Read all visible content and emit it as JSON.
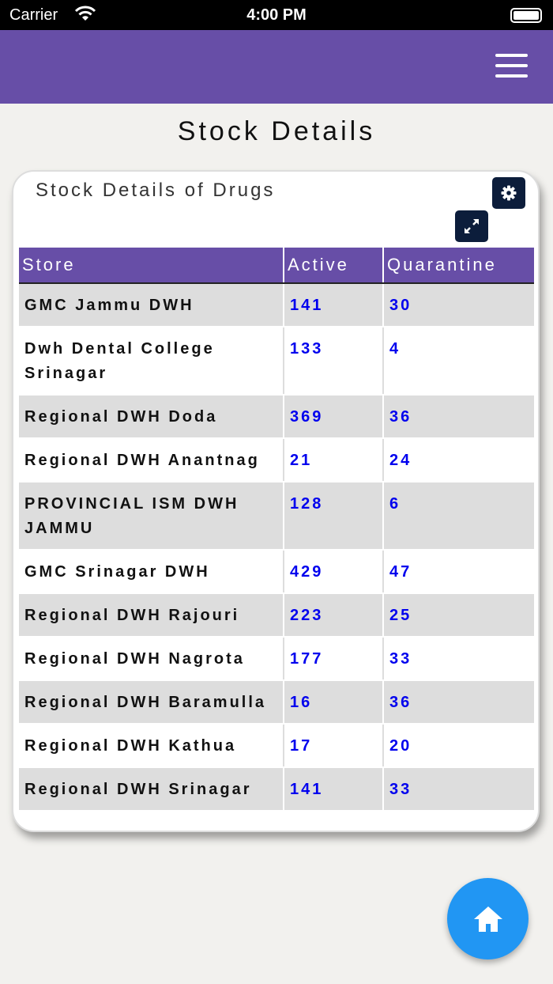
{
  "status_bar": {
    "carrier": "Carrier",
    "time": "4:00 PM"
  },
  "page_title": "Stock Details",
  "card": {
    "title": "Stock Details of Drugs"
  },
  "table": {
    "headers": [
      "Store",
      "Active",
      "Quarantine"
    ],
    "rows": [
      {
        "store": "GMC Jammu DWH",
        "active": "141",
        "quarantine": "30"
      },
      {
        "store": "Dwh Dental College Srinagar",
        "active": "133",
        "quarantine": "4"
      },
      {
        "store": "Regional DWH Doda",
        "active": "369",
        "quarantine": "36"
      },
      {
        "store": "Regional DWH Anantnag",
        "active": "21",
        "quarantine": "24"
      },
      {
        "store": "PROVINCIAL ISM DWH JAMMU",
        "active": "128",
        "quarantine": "6"
      },
      {
        "store": "GMC Srinagar DWH",
        "active": "429",
        "quarantine": "47"
      },
      {
        "store": "Regional DWH Rajouri",
        "active": "223",
        "quarantine": "25"
      },
      {
        "store": "Regional DWH Nagrota",
        "active": "177",
        "quarantine": "33"
      },
      {
        "store": "Regional DWH Baramulla",
        "active": "16",
        "quarantine": "36"
      },
      {
        "store": "Regional DWH Kathua",
        "active": "17",
        "quarantine": "20"
      },
      {
        "store": "Regional DWH Srinagar",
        "active": "141",
        "quarantine": "33"
      }
    ]
  },
  "colors": {
    "header": "#674ea7",
    "number": "#0000ee",
    "fab": "#2196f3",
    "icon_button": "#0c1d3b"
  },
  "icons": {
    "menu": "hamburger-icon",
    "settings": "gear-icon",
    "expand": "expand-icon",
    "home": "home-icon"
  }
}
